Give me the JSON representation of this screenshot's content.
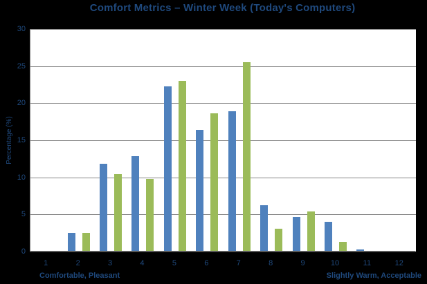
{
  "chart_data": {
    "type": "bar",
    "title": "Comfort Metrics – Winter Week (Today's Computers)",
    "xlabel": "",
    "ylabel": "Percentage (%)",
    "categories": [
      "1",
      "2",
      "3",
      "4",
      "5",
      "6",
      "7",
      "8",
      "9",
      "10",
      "11",
      "12"
    ],
    "series": [
      {
        "name": "blue",
        "color": "#4F81BD",
        "values": [
          0,
          2.5,
          11.8,
          12.9,
          22.3,
          16.4,
          18.9,
          6.2,
          4.7,
          4.0,
          0.3,
          0
        ]
      },
      {
        "name": "green",
        "color": "#9BBB59",
        "values": [
          0,
          2.5,
          10.4,
          9.8,
          23.0,
          18.6,
          25.5,
          3.1,
          5.4,
          1.3,
          0,
          0
        ]
      }
    ],
    "ylim": [
      0,
      30
    ],
    "yticks": [
      0,
      5,
      10,
      15,
      20,
      25,
      30
    ],
    "grid": true,
    "legend": "none",
    "annotations": [
      {
        "text": "Comfortable, Pleasant",
        "position": "bottom-left"
      },
      {
        "text": "Slightly Warm, Acceptable",
        "position": "bottom-right"
      }
    ]
  },
  "colors": {
    "page_background": "#000000",
    "plot_background": "#FFFFFF",
    "gridline": "#848484",
    "axis_line": "#595959",
    "text": "#1F497D"
  }
}
